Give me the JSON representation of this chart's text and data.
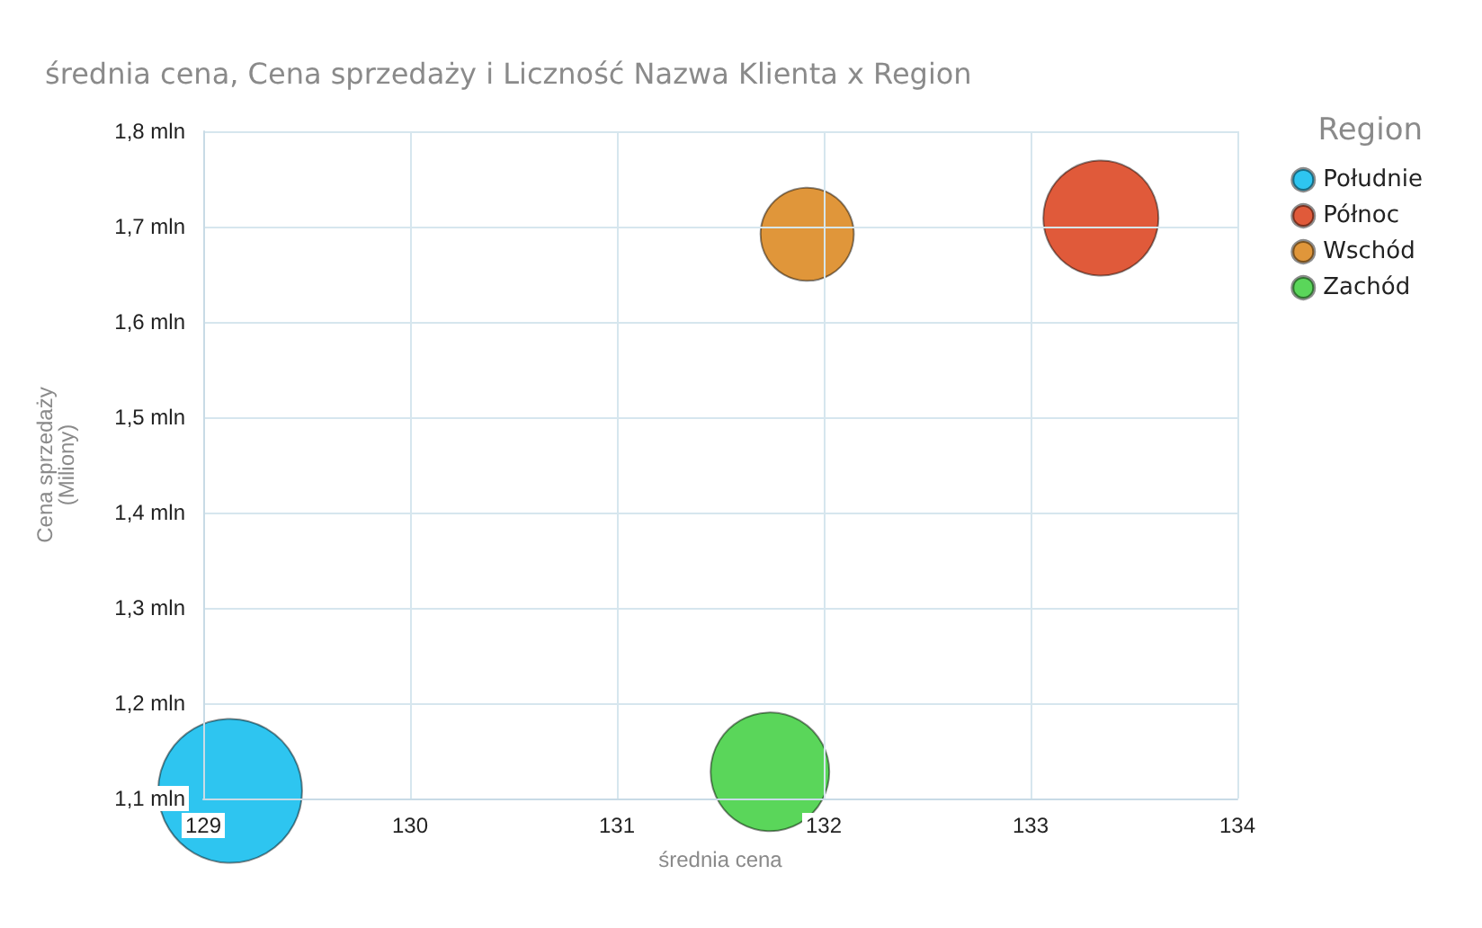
{
  "chart_data": {
    "type": "bubble",
    "title": "średnia cena, Cena sprzedaży i Liczność Nazwa Klienta x Region",
    "xlabel": "średnia cena",
    "ylabel": "Cena sprzedaży\n(Miliony)",
    "legend_title": "Region",
    "series": [
      {
        "name": "Południe",
        "color": "#2ec5f0",
        "x": [
          129.13
        ],
        "values": [
          1.108
        ],
        "sizes": [
          1
        ]
      },
      {
        "name": "Północ",
        "color": "#e05a3a",
        "x": [
          133.34
        ],
        "values": [
          1.709
        ],
        "sizes": [
          0.64
        ]
      },
      {
        "name": "Wschód",
        "color": "#e0963a",
        "x": [
          131.92
        ],
        "values": [
          1.692
        ],
        "sizes": [
          0.42
        ]
      },
      {
        "name": "Zachód",
        "color": "#5ad65a",
        "x": [
          131.74
        ],
        "values": [
          1.128
        ],
        "sizes": [
          0.68
        ]
      }
    ],
    "xlim": [
      129,
      134
    ],
    "xticks": [
      129,
      130,
      131,
      132,
      133,
      134
    ],
    "ylim": [
      1.1,
      1.8
    ],
    "yticks": [
      {
        "value": 1.1,
        "label": "1,1 mln"
      },
      {
        "value": 1.2,
        "label": "1,2 mln"
      },
      {
        "value": 1.3,
        "label": "1,3 mln"
      },
      {
        "value": 1.4,
        "label": "1,4 mln"
      },
      {
        "value": 1.5,
        "label": "1,5 mln"
      },
      {
        "value": 1.6,
        "label": "1,6 mln"
      },
      {
        "value": 1.7,
        "label": "1,7 mln"
      },
      {
        "value": 1.8,
        "label": "1,8 mln"
      }
    ],
    "grid": true,
    "legend": "top right",
    "marker": "circle"
  }
}
